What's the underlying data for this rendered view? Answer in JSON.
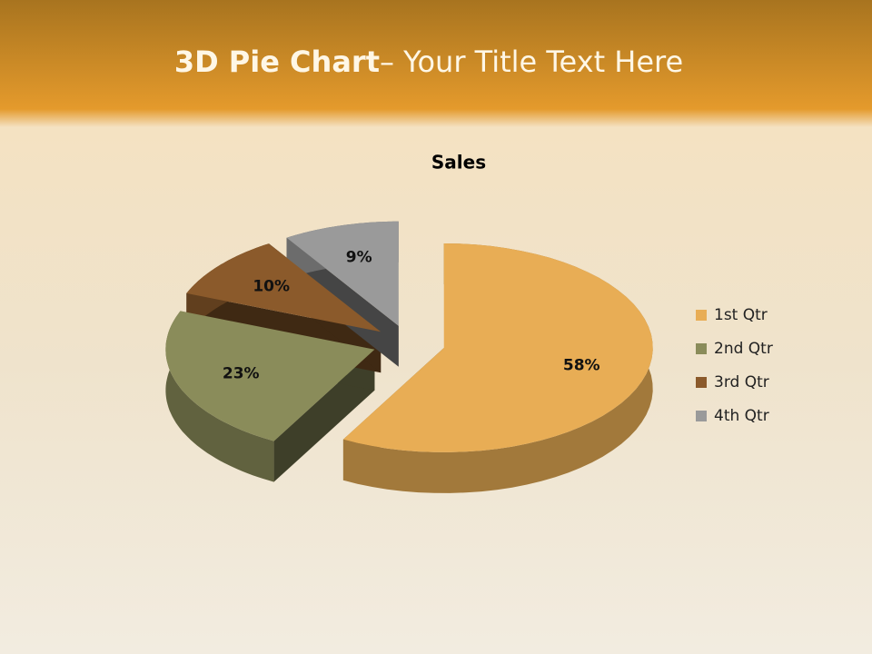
{
  "header": {
    "title_bold": "3D Pie Chart",
    "title_rest": "– Your Title Text Here"
  },
  "chart_data": {
    "type": "pie",
    "title": "Sales",
    "categories": [
      "1st Qtr",
      "2nd Qtr",
      "3rd Qtr",
      "4th Qtr"
    ],
    "values": [
      58,
      23,
      10,
      9
    ],
    "value_labels": [
      "58%",
      "23%",
      "10%",
      "9%"
    ],
    "colors": [
      "#e8ad55",
      "#8a8c5a",
      "#8b5a2b",
      "#9a9a9a"
    ],
    "legend": "right"
  }
}
